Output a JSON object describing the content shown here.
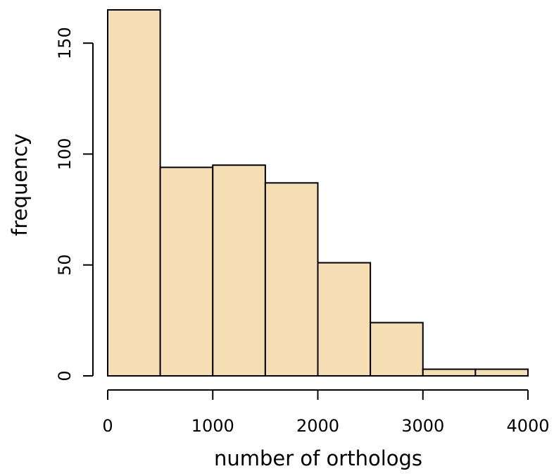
{
  "chart_data": {
    "type": "bar",
    "title": "",
    "xlabel": "number of orthologs",
    "ylabel": "frequency",
    "bin_edges": [
      0,
      500,
      1000,
      1500,
      2000,
      2500,
      3000,
      3500,
      4000
    ],
    "values": [
      165,
      94,
      95,
      87,
      51,
      24,
      3,
      3
    ],
    "xlim": [
      0,
      4000
    ],
    "ylim": [
      0,
      165
    ],
    "x_ticks": [
      0,
      1000,
      2000,
      3000,
      4000
    ],
    "y_ticks": [
      0,
      50,
      100,
      150
    ],
    "bar_color": "#F5DEB3",
    "grid": false,
    "legend": "none"
  }
}
